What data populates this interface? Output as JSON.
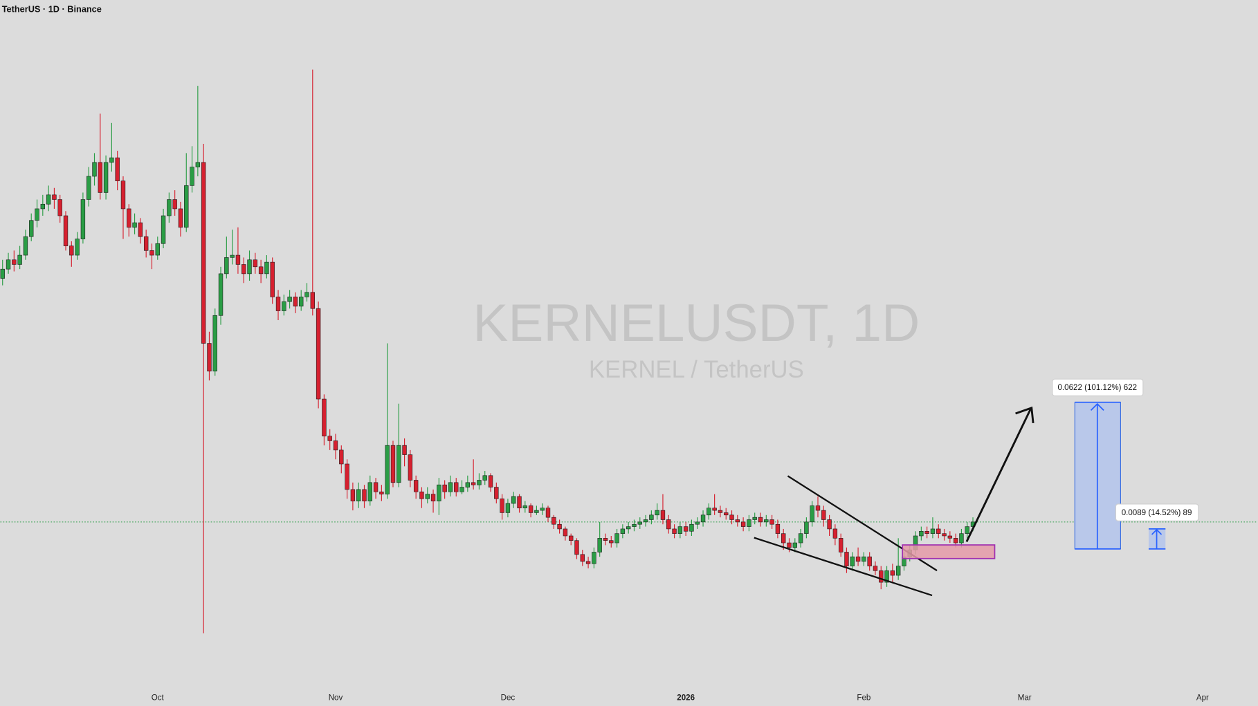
{
  "chart_data": {
    "type": "candlestick",
    "title": "TetherUS · 1D · Binance",
    "watermark": "KERNELUSDT, 1D",
    "watermark_subtitle": "KERNEL / TetherUS",
    "up_color": "#2a9d45",
    "down_color": "#d6202f",
    "xlim": [
      -0.4,
      218.6
    ],
    "ylim": [
      0.003,
      0.298
    ],
    "xticks": [
      {
        "value": 27,
        "label": "Oct"
      },
      {
        "value": 58,
        "label": "Nov"
      },
      {
        "value": 88,
        "label": "Dec"
      },
      {
        "value": 119,
        "label": "2026"
      },
      {
        "value": 150,
        "label": "Feb"
      },
      {
        "value": 178,
        "label": "Mar"
      },
      {
        "value": 209,
        "label": "Apr"
      }
    ],
    "annotations": [
      "0.0622 (101.12%) 622",
      "0.0089 (14.52%) 89"
    ],
    "open": [
      0.178,
      0.182,
      0.186,
      0.184,
      0.188,
      0.196,
      0.203,
      0.208,
      0.21,
      0.214,
      0.212,
      0.205,
      0.192,
      0.188,
      0.195,
      0.212,
      0.222,
      0.228,
      0.215,
      0.228,
      0.23,
      0.22,
      0.208,
      0.2,
      0.202,
      0.196,
      0.19,
      0.188,
      0.193,
      0.205,
      0.212,
      0.208,
      0.2,
      0.218,
      0.226,
      0.228,
      0.15,
      0.138,
      0.162,
      0.18,
      0.187,
      0.188,
      0.184,
      0.18,
      0.186,
      0.183,
      0.18,
      0.185,
      0.17,
      0.164,
      0.168,
      0.17,
      0.166,
      0.17,
      0.172,
      0.165,
      0.126,
      0.11,
      0.108,
      0.104,
      0.098,
      0.087,
      0.082,
      0.087,
      0.082,
      0.09,
      0.086,
      0.085,
      0.106,
      0.09,
      0.106,
      0.102,
      0.091,
      0.086,
      0.083,
      0.085,
      0.082,
      0.089,
      0.086,
      0.09,
      0.086,
      0.088,
      0.09,
      0.089,
      0.091,
      0.093,
      0.088,
      0.083,
      0.077,
      0.081,
      0.084,
      0.079,
      0.08,
      0.077,
      0.078,
      0.079,
      0.075,
      0.072,
      0.07,
      0.067,
      0.065,
      0.059,
      0.056,
      0.055,
      0.06,
      0.066,
      0.065,
      0.064,
      0.068,
      0.07,
      0.071,
      0.072,
      0.073,
      0.074,
      0.076,
      0.078,
      0.074,
      0.07,
      0.068,
      0.071,
      0.069,
      0.072,
      0.073,
      0.076,
      0.079,
      0.078,
      0.077,
      0.076,
      0.074,
      0.073,
      0.071,
      0.074,
      0.075,
      0.073,
      0.074,
      0.072,
      0.068,
      0.064,
      0.062,
      0.064,
      0.068,
      0.073,
      0.08,
      0.078,
      0.074,
      0.07,
      0.066,
      0.06,
      0.054,
      0.058,
      0.056,
      0.058,
      0.054,
      0.052,
      0.047,
      0.052,
      0.05,
      0.054,
      0.058,
      0.061,
      0.067,
      0.069,
      0.068,
      0.07,
      0.068,
      0.067,
      0.066,
      0.064,
      0.068,
      0.071
    ],
    "high": [
      0.186,
      0.189,
      0.19,
      0.192,
      0.199,
      0.206,
      0.212,
      0.214,
      0.218,
      0.217,
      0.214,
      0.207,
      0.194,
      0.198,
      0.215,
      0.226,
      0.232,
      0.249,
      0.231,
      0.245,
      0.233,
      0.222,
      0.21,
      0.206,
      0.204,
      0.199,
      0.193,
      0.196,
      0.208,
      0.215,
      0.216,
      0.211,
      0.232,
      0.235,
      0.261,
      0.236,
      0.155,
      0.165,
      0.183,
      0.196,
      0.199,
      0.2,
      0.187,
      0.19,
      0.189,
      0.186,
      0.188,
      0.187,
      0.173,
      0.171,
      0.173,
      0.172,
      0.173,
      0.176,
      0.268,
      0.168,
      0.128,
      0.113,
      0.111,
      0.106,
      0.1,
      0.09,
      0.09,
      0.089,
      0.093,
      0.092,
      0.089,
      0.15,
      0.108,
      0.124,
      0.109,
      0.104,
      0.093,
      0.088,
      0.088,
      0.087,
      0.092,
      0.091,
      0.093,
      0.092,
      0.091,
      0.093,
      0.1,
      0.094,
      0.095,
      0.094,
      0.09,
      0.085,
      0.083,
      0.086,
      0.085,
      0.082,
      0.081,
      0.08,
      0.081,
      0.08,
      0.076,
      0.074,
      0.071,
      0.068,
      0.066,
      0.061,
      0.058,
      0.062,
      0.073,
      0.068,
      0.067,
      0.07,
      0.072,
      0.073,
      0.074,
      0.075,
      0.076,
      0.078,
      0.081,
      0.085,
      0.076,
      0.072,
      0.073,
      0.073,
      0.074,
      0.075,
      0.078,
      0.081,
      0.085,
      0.08,
      0.079,
      0.078,
      0.076,
      0.075,
      0.076,
      0.077,
      0.077,
      0.076,
      0.076,
      0.074,
      0.07,
      0.066,
      0.066,
      0.07,
      0.075,
      0.082,
      0.084,
      0.08,
      0.076,
      0.072,
      0.068,
      0.062,
      0.06,
      0.062,
      0.06,
      0.06,
      0.056,
      0.054,
      0.054,
      0.055,
      0.066,
      0.06,
      0.063,
      0.069,
      0.071,
      0.071,
      0.075,
      0.072,
      0.07,
      0.069,
      0.068,
      0.07,
      0.073,
      0.075
    ],
    "low": [
      0.175,
      0.18,
      0.181,
      0.182,
      0.186,
      0.194,
      0.2,
      0.205,
      0.207,
      0.208,
      0.202,
      0.19,
      0.183,
      0.186,
      0.193,
      0.209,
      0.218,
      0.212,
      0.212,
      0.224,
      0.216,
      0.195,
      0.196,
      0.197,
      0.193,
      0.187,
      0.182,
      0.186,
      0.191,
      0.202,
      0.205,
      0.196,
      0.198,
      0.215,
      0.222,
      0.025,
      0.134,
      0.136,
      0.158,
      0.178,
      0.184,
      0.18,
      0.176,
      0.177,
      0.18,
      0.176,
      0.178,
      0.167,
      0.16,
      0.162,
      0.165,
      0.163,
      0.164,
      0.168,
      0.162,
      0.122,
      0.106,
      0.104,
      0.1,
      0.094,
      0.083,
      0.078,
      0.079,
      0.079,
      0.08,
      0.083,
      0.082,
      0.083,
      0.088,
      0.088,
      0.097,
      0.088,
      0.083,
      0.079,
      0.081,
      0.077,
      0.076,
      0.083,
      0.084,
      0.084,
      0.085,
      0.086,
      0.087,
      0.087,
      0.089,
      0.086,
      0.081,
      0.074,
      0.075,
      0.079,
      0.077,
      0.077,
      0.075,
      0.076,
      0.076,
      0.073,
      0.07,
      0.068,
      0.065,
      0.063,
      0.057,
      0.054,
      0.053,
      0.053,
      0.058,
      0.063,
      0.062,
      0.062,
      0.066,
      0.068,
      0.069,
      0.07,
      0.071,
      0.072,
      0.074,
      0.072,
      0.068,
      0.066,
      0.066,
      0.067,
      0.067,
      0.07,
      0.071,
      0.074,
      0.076,
      0.075,
      0.074,
      0.072,
      0.071,
      0.069,
      0.069,
      0.072,
      0.071,
      0.071,
      0.07,
      0.066,
      0.061,
      0.06,
      0.06,
      0.062,
      0.066,
      0.071,
      0.075,
      0.071,
      0.067,
      0.063,
      0.058,
      0.051,
      0.052,
      0.054,
      0.054,
      0.052,
      0.05,
      0.044,
      0.045,
      0.047,
      0.048,
      0.052,
      0.056,
      0.059,
      0.065,
      0.066,
      0.066,
      0.066,
      0.065,
      0.064,
      0.062,
      0.062,
      0.066,
      0.069
    ],
    "close": [
      0.182,
      0.186,
      0.184,
      0.188,
      0.196,
      0.203,
      0.208,
      0.21,
      0.214,
      0.212,
      0.205,
      0.192,
      0.188,
      0.195,
      0.212,
      0.222,
      0.228,
      0.215,
      0.228,
      0.23,
      0.22,
      0.208,
      0.2,
      0.202,
      0.196,
      0.19,
      0.188,
      0.193,
      0.205,
      0.212,
      0.208,
      0.2,
      0.218,
      0.226,
      0.228,
      0.15,
      0.138,
      0.162,
      0.18,
      0.187,
      0.188,
      0.184,
      0.18,
      0.186,
      0.183,
      0.18,
      0.185,
      0.17,
      0.164,
      0.168,
      0.17,
      0.166,
      0.17,
      0.172,
      0.165,
      0.126,
      0.11,
      0.108,
      0.104,
      0.098,
      0.087,
      0.082,
      0.087,
      0.082,
      0.09,
      0.086,
      0.085,
      0.106,
      0.09,
      0.106,
      0.102,
      0.091,
      0.086,
      0.083,
      0.085,
      0.082,
      0.089,
      0.086,
      0.09,
      0.086,
      0.088,
      0.09,
      0.089,
      0.091,
      0.093,
      0.088,
      0.083,
      0.077,
      0.081,
      0.084,
      0.079,
      0.08,
      0.077,
      0.078,
      0.079,
      0.075,
      0.072,
      0.07,
      0.067,
      0.065,
      0.059,
      0.056,
      0.055,
      0.06,
      0.066,
      0.065,
      0.064,
      0.068,
      0.07,
      0.071,
      0.072,
      0.073,
      0.074,
      0.076,
      0.078,
      0.074,
      0.07,
      0.068,
      0.071,
      0.069,
      0.072,
      0.073,
      0.076,
      0.079,
      0.078,
      0.077,
      0.076,
      0.074,
      0.073,
      0.071,
      0.074,
      0.075,
      0.073,
      0.074,
      0.072,
      0.068,
      0.064,
      0.062,
      0.064,
      0.068,
      0.073,
      0.08,
      0.078,
      0.074,
      0.07,
      0.066,
      0.06,
      0.054,
      0.058,
      0.056,
      0.058,
      0.054,
      0.052,
      0.047,
      0.052,
      0.05,
      0.054,
      0.058,
      0.061,
      0.067,
      0.069,
      0.068,
      0.07,
      0.068,
      0.067,
      0.066,
      0.064,
      0.068,
      0.071,
      0.073
    ]
  }
}
